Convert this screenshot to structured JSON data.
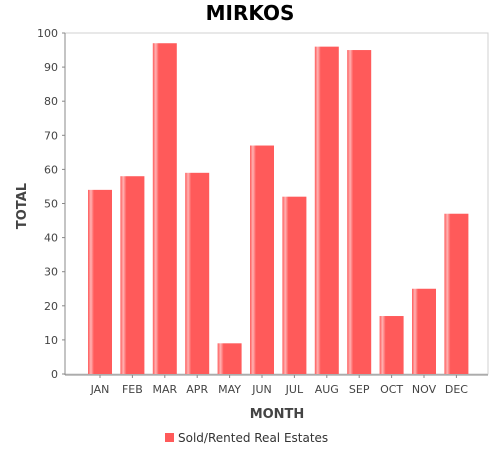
{
  "chart_data": {
    "type": "bar",
    "title": "MIRKOS",
    "xlabel": "MONTH",
    "ylabel": "TOTAL",
    "categories": [
      "JAN",
      "FEB",
      "MAR",
      "APR",
      "MAY",
      "JUN",
      "JUL",
      "AUG",
      "SEP",
      "OCT",
      "NOV",
      "DEC"
    ],
    "series": [
      {
        "name": "Sold/Rented Real Estates",
        "values": [
          54,
          58,
          97,
          59,
          9,
          67,
          52,
          96,
          95,
          17,
          25,
          47
        ]
      }
    ],
    "ylim": [
      0,
      100
    ],
    "yticks": [
      "0",
      "10",
      "20",
      "30",
      "40",
      "50",
      "60",
      "70",
      "80",
      "90",
      "100"
    ],
    "grid": false,
    "legend_position": "bottom",
    "colors": {
      "bar_fill": "#ff5a5a",
      "bar_highlight": "#ffb3b3",
      "axis": "#888888",
      "background": "#ffffff"
    }
  }
}
